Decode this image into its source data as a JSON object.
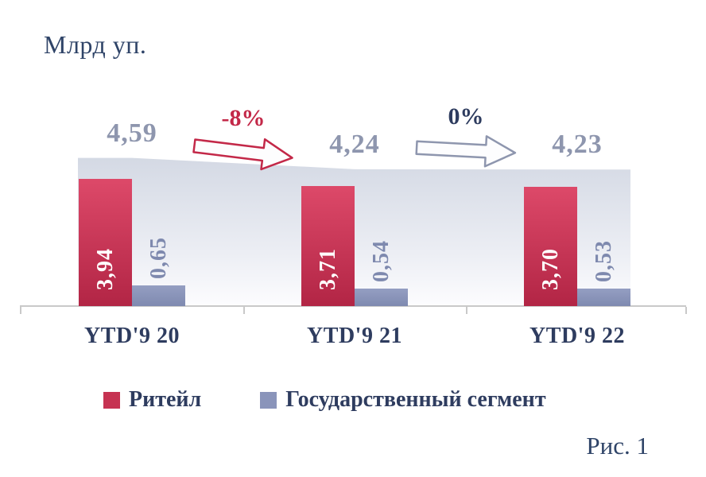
{
  "title": "Млрд уп.",
  "caption": "Рис. 1",
  "legend": {
    "items": [
      {
        "label": "Ритейл",
        "color": "#c63352"
      },
      {
        "label": "Государственный сегмент",
        "color": "#8a94ba"
      }
    ]
  },
  "colors": {
    "retail_bar": "#c73556",
    "gov_bar": "#8a94ba",
    "total_text": "#8e96ae",
    "dark_text": "#2e3c5f",
    "delta_negative": "#c32848",
    "axis": "#c9c9c9",
    "band_top": "#d5dae5"
  },
  "chart_data": {
    "type": "bar",
    "title": "Млрд уп.",
    "ylabel": "Млрд уп.",
    "ylim": [
      0,
      5
    ],
    "grid": false,
    "legend_position": "bottom",
    "categories": [
      "YTD'9 20",
      "YTD'9 21",
      "YTD'9 22"
    ],
    "series": [
      {
        "name": "Ритейл",
        "values": [
          3.94,
          3.71,
          3.7
        ],
        "labels": [
          "3,94",
          "3,71",
          "3,70"
        ]
      },
      {
        "name": "Государственный сегмент",
        "values": [
          0.65,
          0.54,
          0.53
        ],
        "labels": [
          "0,65",
          "0,54",
          "0,53"
        ]
      }
    ],
    "totals": {
      "values": [
        4.59,
        4.24,
        4.23
      ],
      "labels": [
        "4,59",
        "4,24",
        "4,23"
      ]
    },
    "deltas": [
      {
        "from": "YTD'9 20",
        "to": "YTD'9 21",
        "label": "-8%",
        "type": "negative"
      },
      {
        "from": "YTD'9 21",
        "to": "YTD'9 22",
        "label": "0%",
        "type": "neutral"
      }
    ]
  }
}
